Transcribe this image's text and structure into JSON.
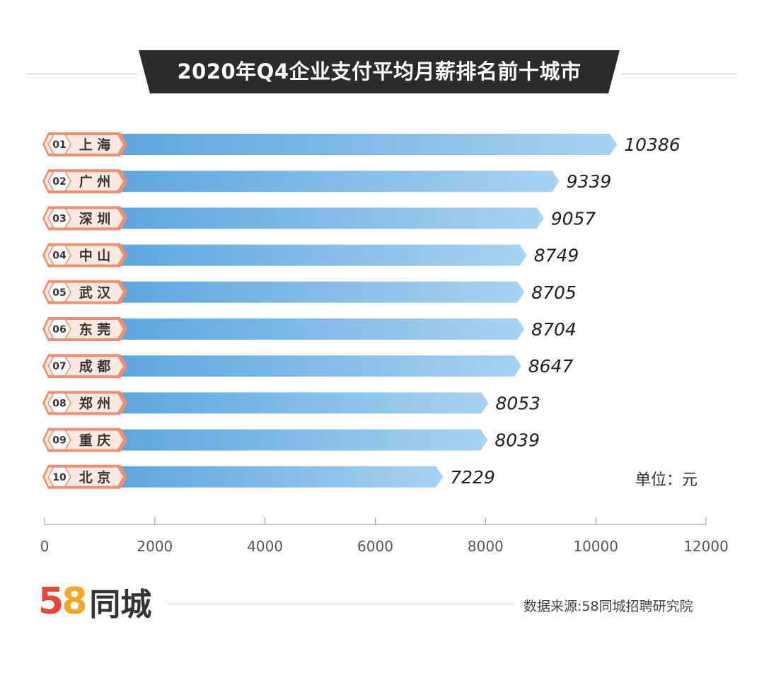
{
  "title": "2020年Q4企业支付平均月薪排名前十城市",
  "unit_label": "单位：元",
  "logo": {
    "number": "58",
    "name": "同城"
  },
  "source": "数据来源:58同城招聘研究院",
  "colors": {
    "banner": "#2b2b2b",
    "bar_start": "#5ea6dd",
    "bar_end": "#a9d2f1",
    "badge": "#ee8f75",
    "badge_inner": "#fbe8de",
    "value_text": "#1e1e1e"
  },
  "chart_data": {
    "type": "bar",
    "orientation": "horizontal",
    "title": "2020年Q4企业支付平均月薪排名前十城市",
    "ranks": [
      "01",
      "02",
      "03",
      "04",
      "05",
      "06",
      "07",
      "08",
      "09",
      "10"
    ],
    "categories": [
      "上 海",
      "广 州",
      "深 圳",
      "中 山",
      "武 汉",
      "东 莞",
      "成 都",
      "郑 州",
      "重 庆",
      "北 京"
    ],
    "values": [
      10386,
      9339,
      9057,
      8749,
      8705,
      8704,
      8647,
      8053,
      8039,
      7229
    ],
    "value_labels": [
      "10386",
      "9339",
      "9057",
      "8749",
      "8705",
      "8704",
      "8647",
      "8053",
      "8039",
      "7229"
    ],
    "xlim": [
      0,
      12000
    ],
    "xticks": [
      0,
      2000,
      4000,
      6000,
      8000,
      10000,
      12000
    ],
    "xtick_labels": [
      "0",
      "2000",
      "4000",
      "6000",
      "8000",
      "10000",
      "12000"
    ],
    "xlabel": "",
    "ylabel": "单位：元",
    "grid": false,
    "legend": "none"
  }
}
